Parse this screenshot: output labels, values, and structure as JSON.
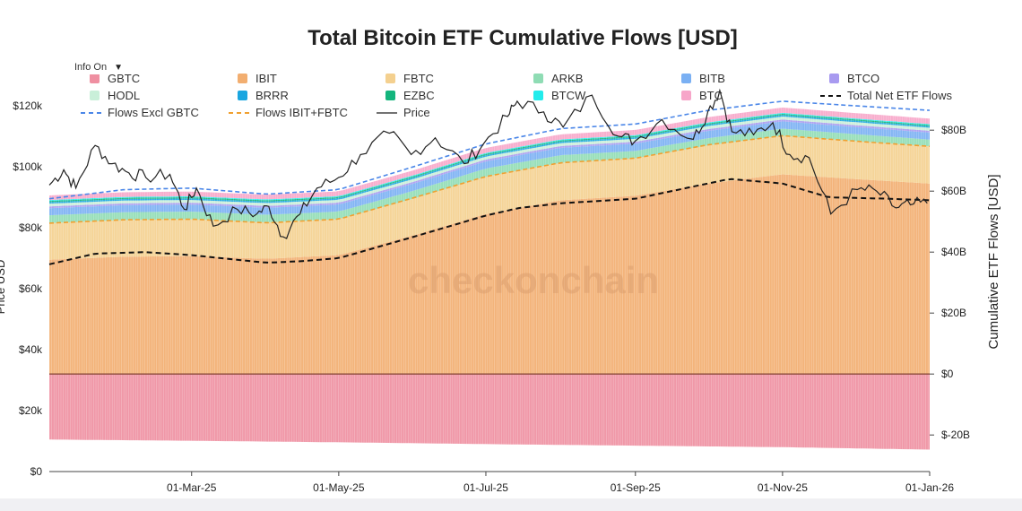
{
  "toolbar": {
    "info_label": "Info On",
    "caret": "▼"
  },
  "chart_data": {
    "type": "area",
    "title": "Total Bitcoin ETF Cumulative Flows [USD]",
    "ylabel_left": "Price USD",
    "ylabel_right": "Cumulative ETF Flows [USD]",
    "watermark": "checkonchain",
    "x_ticks": [
      "01-Mar-25",
      "01-May-25",
      "01-Jul-25",
      "01-Sep-25",
      "01-Nov-25",
      "01-Jan-26"
    ],
    "y_left_ticks": [
      "$0",
      "$20k",
      "$40k",
      "$60k",
      "$80k",
      "$100k",
      "$120k"
    ],
    "y_right_ticks": [
      "$-20B",
      "$0",
      "$20B",
      "$40B",
      "$60B",
      "$80B"
    ],
    "y_left_range": [
      0,
      120000
    ],
    "y_right_range": [
      -32000000000,
      88000000000
    ],
    "x_range": [
      "2025-01-01",
      "2026-01-01"
    ],
    "legend": [
      {
        "name": "GBTC",
        "color": "#ef8fa1",
        "kind": "swatch"
      },
      {
        "name": "IBIT",
        "color": "#f2ae70",
        "kind": "swatch"
      },
      {
        "name": "FBTC",
        "color": "#f4d08f",
        "kind": "swatch"
      },
      {
        "name": "ARKB",
        "color": "#8fdcb4",
        "kind": "swatch"
      },
      {
        "name": "BITB",
        "color": "#7ab0f3",
        "kind": "swatch"
      },
      {
        "name": "BTCO",
        "color": "#a89af0",
        "kind": "swatch"
      },
      {
        "name": "HODL",
        "color": "#c9efd9",
        "kind": "swatch"
      },
      {
        "name": "BRRR",
        "color": "#1aa6e0",
        "kind": "swatch"
      },
      {
        "name": "EZBC",
        "color": "#14b57d",
        "kind": "swatch"
      },
      {
        "name": "BTCW",
        "color": "#22ecec",
        "kind": "swatch"
      },
      {
        "name": "BTC",
        "color": "#f7a6c9",
        "kind": "swatch"
      },
      {
        "name": "Total Net ETF Flows",
        "color": "#111111",
        "kind": "dash"
      },
      {
        "name": "Flows Excl GBTC",
        "color": "#4a86e8",
        "kind": "dash"
      },
      {
        "name": "Flows IBIT+FBTC",
        "color": "#f0a030",
        "kind": "dash"
      },
      {
        "name": "Price",
        "color": "#444444",
        "kind": "line"
      }
    ],
    "legend_placement": "top",
    "grid": false,
    "series": [
      {
        "name": "GBTC",
        "color": "#ef8fa1",
        "points": [
          [
            "2025-01-01",
            -21.5
          ],
          [
            "2025-03-01",
            -21.9
          ],
          [
            "2025-05-01",
            -22.4
          ],
          [
            "2025-07-01",
            -23.0
          ],
          [
            "2025-09-01",
            -23.5
          ],
          [
            "2025-11-01",
            -24.0
          ],
          [
            "2026-01-01",
            -24.8
          ]
        ]
      },
      {
        "name": "IBIT",
        "color": "#f2ae70",
        "points": [
          [
            "2025-01-01",
            37.5
          ],
          [
            "2025-02-01",
            38.5
          ],
          [
            "2025-03-01",
            38.7
          ],
          [
            "2025-04-01",
            37.8
          ],
          [
            "2025-05-01",
            39.0
          ],
          [
            "2025-06-01",
            45.5
          ],
          [
            "2025-07-01",
            52.5
          ],
          [
            "2025-08-01",
            57.0
          ],
          [
            "2025-09-01",
            58.5
          ],
          [
            "2025-10-01",
            62.5
          ],
          [
            "2025-11-01",
            65.5
          ],
          [
            "2025-12-01",
            64.0
          ],
          [
            "2026-01-01",
            62.5
          ]
        ]
      },
      {
        "name": "FBTC",
        "color": "#f4d08f",
        "points": [
          [
            "2025-01-01",
            12.0
          ],
          [
            "2025-03-01",
            12.1
          ],
          [
            "2025-05-01",
            11.8
          ],
          [
            "2025-07-01",
            12.3
          ],
          [
            "2025-09-01",
            12.3
          ],
          [
            "2025-11-01",
            12.7
          ],
          [
            "2026-01-01",
            12.2
          ]
        ]
      },
      {
        "name": "ARKB",
        "color": "#8fdcb4",
        "points": [
          [
            "2025-01-01",
            2.6
          ],
          [
            "2025-03-01",
            2.5
          ],
          [
            "2025-05-01",
            2.5
          ],
          [
            "2025-07-01",
            2.6
          ],
          [
            "2025-09-01",
            2.4
          ],
          [
            "2025-11-01",
            2.3
          ],
          [
            "2026-01-01",
            2.2
          ]
        ]
      },
      {
        "name": "BITB",
        "color": "#7ab0f3",
        "points": [
          [
            "2025-01-01",
            2.3
          ],
          [
            "2025-03-01",
            2.3
          ],
          [
            "2025-05-01",
            2.3
          ],
          [
            "2025-07-01",
            2.4
          ],
          [
            "2025-09-01",
            2.4
          ],
          [
            "2025-11-01",
            2.4
          ],
          [
            "2026-01-01",
            2.3
          ]
        ]
      },
      {
        "name": "BTCO",
        "color": "#a89af0",
        "points": [
          [
            "2025-01-01",
            0.6
          ],
          [
            "2026-01-01",
            0.6
          ]
        ]
      },
      {
        "name": "HODL",
        "color": "#c9efd9",
        "points": [
          [
            "2025-01-01",
            0.9
          ],
          [
            "2026-01-01",
            1.0
          ]
        ]
      },
      {
        "name": "BRRR",
        "color": "#1aa6e0",
        "points": [
          [
            "2025-01-01",
            0.5
          ],
          [
            "2026-01-01",
            0.5
          ]
        ]
      },
      {
        "name": "EZBC",
        "color": "#14b57d",
        "points": [
          [
            "2025-01-01",
            0.4
          ],
          [
            "2026-01-01",
            0.4
          ]
        ]
      },
      {
        "name": "BTCW",
        "color": "#22ecec",
        "points": [
          [
            "2025-01-01",
            0.3
          ],
          [
            "2026-01-01",
            0.3
          ]
        ]
      },
      {
        "name": "BTC",
        "color": "#f7a6c9",
        "points": [
          [
            "2025-01-01",
            1.5
          ],
          [
            "2026-01-01",
            1.8
          ]
        ]
      }
    ],
    "lines": [
      {
        "name": "Total Net ETF Flows",
        "color": "#111111",
        "dash": "6,4",
        "points": [
          [
            "2025-01-01",
            36.0
          ],
          [
            "2025-01-20",
            39.5
          ],
          [
            "2025-02-10",
            40.0
          ],
          [
            "2025-03-01",
            39.0
          ],
          [
            "2025-04-01",
            36.5
          ],
          [
            "2025-04-15",
            37.0
          ],
          [
            "2025-05-01",
            38.0
          ],
          [
            "2025-06-01",
            45.0
          ],
          [
            "2025-07-01",
            52.0
          ],
          [
            "2025-07-15",
            54.5
          ],
          [
            "2025-08-01",
            56.0
          ],
          [
            "2025-09-01",
            57.5
          ],
          [
            "2025-10-01",
            62.5
          ],
          [
            "2025-10-10",
            64.0
          ],
          [
            "2025-11-01",
            62.5
          ],
          [
            "2025-11-20",
            58.0
          ],
          [
            "2025-12-15",
            57.5
          ],
          [
            "2026-01-01",
            57.0
          ]
        ]
      },
      {
        "name": "Flows Excl GBTC",
        "color": "#4a86e8",
        "dash": "5,3",
        "points": [
          [
            "2025-01-01",
            57.5
          ],
          [
            "2025-02-01",
            60.5
          ],
          [
            "2025-03-01",
            61.0
          ],
          [
            "2025-04-01",
            59.0
          ],
          [
            "2025-05-01",
            60.5
          ],
          [
            "2025-06-01",
            68.0
          ],
          [
            "2025-07-01",
            75.5
          ],
          [
            "2025-08-01",
            80.5
          ],
          [
            "2025-09-01",
            82.0
          ],
          [
            "2025-10-01",
            86.5
          ],
          [
            "2025-11-01",
            89.5
          ],
          [
            "2025-12-01",
            88.0
          ],
          [
            "2026-01-01",
            86.5
          ]
        ]
      },
      {
        "name": "Flows IBIT+FBTC",
        "color": "#f0a030",
        "dash": "5,3",
        "points": [
          [
            "2025-01-01",
            49.5
          ],
          [
            "2025-02-01",
            50.6
          ],
          [
            "2025-03-01",
            50.8
          ],
          [
            "2025-04-01",
            49.6
          ],
          [
            "2025-05-01",
            50.8
          ],
          [
            "2025-06-01",
            57.8
          ],
          [
            "2025-07-01",
            64.8
          ],
          [
            "2025-08-01",
            69.3
          ],
          [
            "2025-09-01",
            70.8
          ],
          [
            "2025-10-01",
            75.2
          ],
          [
            "2025-11-01",
            78.2
          ],
          [
            "2025-12-01",
            76.4
          ],
          [
            "2026-01-01",
            74.7
          ]
        ]
      }
    ],
    "price": {
      "name": "Price",
      "color": "#222222",
      "points": [
        [
          "2025-01-01",
          94000
        ],
        [
          "2025-01-07",
          99000
        ],
        [
          "2025-01-12",
          93000
        ],
        [
          "2025-01-20",
          107000
        ],
        [
          "2025-01-27",
          101000
        ],
        [
          "2025-02-03",
          98000
        ],
        [
          "2025-02-10",
          96500
        ],
        [
          "2025-02-20",
          97500
        ],
        [
          "2025-02-26",
          86000
        ],
        [
          "2025-03-03",
          93000
        ],
        [
          "2025-03-10",
          80500
        ],
        [
          "2025-03-20",
          86000
        ],
        [
          "2025-03-28",
          84500
        ],
        [
          "2025-04-02",
          87000
        ],
        [
          "2025-04-08",
          77000
        ],
        [
          "2025-04-15",
          84500
        ],
        [
          "2025-04-22",
          93000
        ],
        [
          "2025-05-01",
          96500
        ],
        [
          "2025-05-10",
          104000
        ],
        [
          "2025-05-22",
          111000
        ],
        [
          "2025-05-31",
          104000
        ],
        [
          "2025-06-10",
          109500
        ],
        [
          "2025-06-22",
          101000
        ],
        [
          "2025-06-30",
          107500
        ],
        [
          "2025-07-10",
          116500
        ],
        [
          "2025-07-14",
          121500
        ],
        [
          "2025-07-25",
          118000
        ],
        [
          "2025-08-02",
          113000
        ],
        [
          "2025-08-14",
          123500
        ],
        [
          "2025-08-25",
          110000
        ],
        [
          "2025-09-01",
          108500
        ],
        [
          "2025-09-12",
          115500
        ],
        [
          "2025-09-25",
          109000
        ],
        [
          "2025-10-01",
          118000
        ],
        [
          "2025-10-06",
          125000
        ],
        [
          "2025-10-11",
          111500
        ],
        [
          "2025-10-20",
          110500
        ],
        [
          "2025-10-28",
          114500
        ],
        [
          "2025-11-04",
          104000
        ],
        [
          "2025-11-12",
          103000
        ],
        [
          "2025-11-21",
          84500
        ],
        [
          "2025-12-02",
          92500
        ],
        [
          "2025-12-10",
          92000
        ],
        [
          "2025-12-18",
          86500
        ],
        [
          "2025-12-24",
          87500
        ],
        [
          "2025-12-31",
          88000
        ]
      ]
    }
  }
}
